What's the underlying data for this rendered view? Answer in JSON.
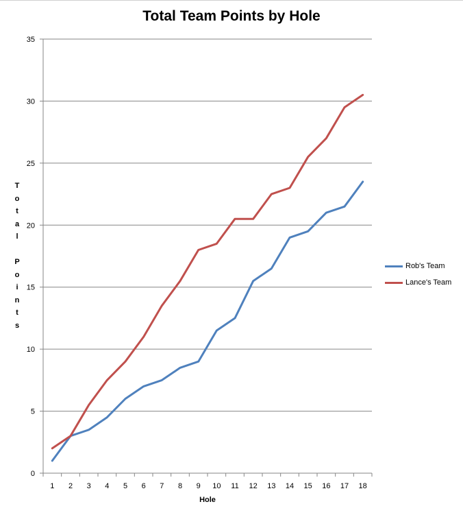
{
  "chart_data": {
    "type": "line",
    "title": "Total Team Points by Hole",
    "xlabel": "Hole",
    "ylabel": "Total Points",
    "x": [
      1,
      2,
      3,
      4,
      5,
      6,
      7,
      8,
      9,
      10,
      11,
      12,
      13,
      14,
      15,
      16,
      17,
      18
    ],
    "ylim": [
      0,
      35
    ],
    "yticks": [
      0,
      5,
      10,
      15,
      20,
      25,
      30,
      35
    ],
    "grid": true,
    "legend_position": "right",
    "series": [
      {
        "name": "Rob's Team",
        "color": "#4f81bd",
        "values": [
          1,
          3,
          3.5,
          4.5,
          6,
          7,
          7.5,
          8.5,
          9,
          11.5,
          12.5,
          15.5,
          16.5,
          19,
          19.5,
          21,
          21.5,
          23.5
        ]
      },
      {
        "name": "Lance's Team",
        "color": "#c0504d",
        "values": [
          2,
          3,
          5.5,
          7.5,
          9,
          11,
          13.5,
          15.5,
          18,
          18.5,
          20.5,
          20.5,
          22.5,
          23,
          25.5,
          27,
          29.5,
          30.5
        ]
      }
    ]
  }
}
